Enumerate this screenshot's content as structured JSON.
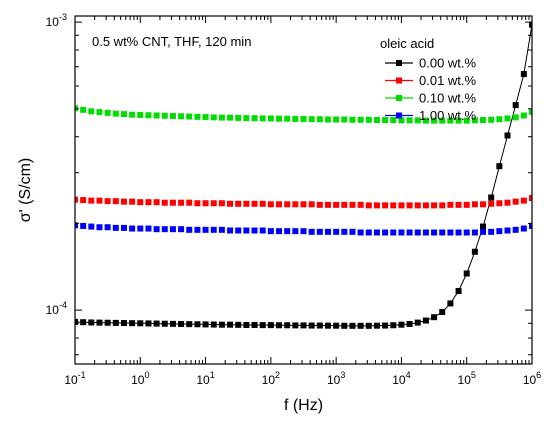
{
  "chart_data": {
    "type": "line",
    "title": "",
    "annotation": "0.5 wt% CNT, THF, 120 min",
    "xlabel": "f (Hz)",
    "ylabel": "σ' (S/cm)",
    "xscale": "log",
    "yscale": "log",
    "xlim": [
      0.1,
      1000000
    ],
    "ylim": [
      6.5e-05,
      0.00105
    ],
    "grid": false,
    "legend_title": "oleic acid",
    "legend_position": "top-right",
    "x_tick_labels": [
      {
        "base": "10",
        "exp": "-1"
      },
      {
        "base": "10",
        "exp": "0"
      },
      {
        "base": "10",
        "exp": "1"
      },
      {
        "base": "10",
        "exp": "2"
      },
      {
        "base": "10",
        "exp": "3"
      },
      {
        "base": "10",
        "exp": "4"
      },
      {
        "base": "10",
        "exp": "5"
      },
      {
        "base": "10",
        "exp": "6"
      }
    ],
    "y_tick_labels": [
      {
        "value": 0.0001,
        "base": "10",
        "exp": "-4"
      },
      {
        "value": 0.001,
        "base": "10",
        "exp": "-3"
      }
    ],
    "x": [
      0.1,
      0.1334,
      0.1778,
      0.2371,
      0.3162,
      0.4217,
      0.5623,
      0.7499,
      1.0,
      1.3335,
      1.7783,
      2.3714,
      3.1623,
      4.217,
      5.6234,
      7.4989,
      10.0,
      13.3352,
      17.7828,
      23.7137,
      31.6228,
      42.1697,
      56.2341,
      74.9894,
      100.0,
      133.3521,
      177.8279,
      237.1374,
      316.2278,
      421.6965,
      562.3413,
      749.8942,
      1000.0,
      1333.5214,
      1778.2794,
      2371.3737,
      3162.2777,
      4216.965,
      5623.4133,
      7498.9421,
      10000.0,
      13335.2143,
      17782.7941,
      23713.7371,
      31622.7766,
      42169.6503,
      56234.1325,
      74989.4209,
      100000.0,
      133352.1432,
      177827.941,
      237137.3706,
      316227.766,
      421696.5034,
      562341.3252,
      749894.2093,
      1000000.0
    ],
    "series": [
      {
        "name": "0.00 wt.%",
        "color": "#000000",
        "marker": "square",
        "line": true,
        "values": [
          9.1e-05,
          9.08e-05,
          9.06e-05,
          9.05e-05,
          9.04e-05,
          9.03e-05,
          9.02e-05,
          9.01e-05,
          9e-05,
          8.99e-05,
          8.98e-05,
          8.97e-05,
          8.96e-05,
          8.95e-05,
          8.94e-05,
          8.93e-05,
          8.92e-05,
          8.91e-05,
          8.9e-05,
          8.9e-05,
          8.89e-05,
          8.88e-05,
          8.88e-05,
          8.87e-05,
          8.87e-05,
          8.86e-05,
          8.86e-05,
          8.85e-05,
          8.85e-05,
          8.84e-05,
          8.84e-05,
          8.83e-05,
          8.83e-05,
          8.82e-05,
          8.82e-05,
          8.82e-05,
          8.82e-05,
          8.83e-05,
          8.84e-05,
          8.86e-05,
          8.9e-05,
          8.95e-05,
          9.05e-05,
          9.2e-05,
          9.45e-05,
          9.85e-05,
          0.0001055,
          0.0001165,
          0.000134,
          0.0001595,
          0.000195,
          0.000246,
          0.000316,
          0.000404,
          0.000515,
          0.00066,
          0.00098
        ]
      },
      {
        "name": "0.01 wt.%",
        "color": "#ff0000",
        "marker": "square",
        "line": false,
        "values": [
          0.000242,
          0.000241,
          0.00024,
          0.00024,
          0.000239,
          0.000239,
          0.000238,
          0.000238,
          0.000237,
          0.000237,
          0.000237,
          0.000236,
          0.000236,
          0.000236,
          0.000236,
          0.000235,
          0.000235,
          0.000235,
          0.000235,
          0.000234,
          0.000234,
          0.000234,
          0.000234,
          0.000234,
          0.000233,
          0.000233,
          0.000233,
          0.000233,
          0.000233,
          0.000233,
          0.000232,
          0.000232,
          0.000232,
          0.000232,
          0.000232,
          0.000232,
          0.000231,
          0.000231,
          0.000231,
          0.000231,
          0.000231,
          0.000231,
          0.000231,
          0.000231,
          0.000231,
          0.000231,
          0.000232,
          0.000232,
          0.000232,
          0.000233,
          0.000233,
          0.000234,
          0.000235,
          0.000236,
          0.000238,
          0.00024,
          0.000245
        ]
      },
      {
        "name": "0.10 wt.%",
        "color": "#00dd00",
        "marker": "square",
        "line": false,
        "values": [
          0.000502,
          0.000496,
          0.00049,
          0.000487,
          0.000484,
          0.000481,
          0.000479,
          0.000477,
          0.000476,
          0.000475,
          0.000474,
          0.000473,
          0.000472,
          0.000471,
          0.00047,
          0.000469,
          0.000468,
          0.000467,
          0.000466,
          0.000466,
          0.000465,
          0.000464,
          0.000464,
          0.000463,
          0.000463,
          0.000462,
          0.000462,
          0.000461,
          0.000461,
          0.00046,
          0.00046,
          0.000459,
          0.000459,
          0.000459,
          0.000458,
          0.000458,
          0.000458,
          0.000457,
          0.000457,
          0.000457,
          0.000456,
          0.000456,
          0.000456,
          0.000455,
          0.000455,
          0.000455,
          0.000455,
          0.000455,
          0.000455,
          0.000456,
          0.000457,
          0.000458,
          0.00046,
          0.000463,
          0.000467,
          0.000474,
          0.000488
        ]
      },
      {
        "name": "1.00 wt.%",
        "color": "#0000ff",
        "marker": "square",
        "line": false,
        "values": [
          0.000197,
          0.000196,
          0.000195,
          0.000194,
          0.000194,
          0.000193,
          0.000193,
          0.000192,
          0.000192,
          0.000192,
          0.000191,
          0.000191,
          0.000191,
          0.000191,
          0.00019,
          0.00019,
          0.00019,
          0.00019,
          0.00019,
          0.000189,
          0.000189,
          0.000189,
          0.000189,
          0.000189,
          0.000188,
          0.000188,
          0.000188,
          0.000188,
          0.000188,
          0.000187,
          0.000187,
          0.000187,
          0.000187,
          0.000187,
          0.000187,
          0.000186,
          0.000186,
          0.000186,
          0.000186,
          0.000186,
          0.000186,
          0.000186,
          0.000186,
          0.000186,
          0.000186,
          0.000186,
          0.000186,
          0.000186,
          0.000186,
          0.000186,
          0.000187,
          0.000187,
          0.000188,
          0.000189,
          0.00019,
          0.000192,
          0.000196
        ]
      }
    ]
  }
}
